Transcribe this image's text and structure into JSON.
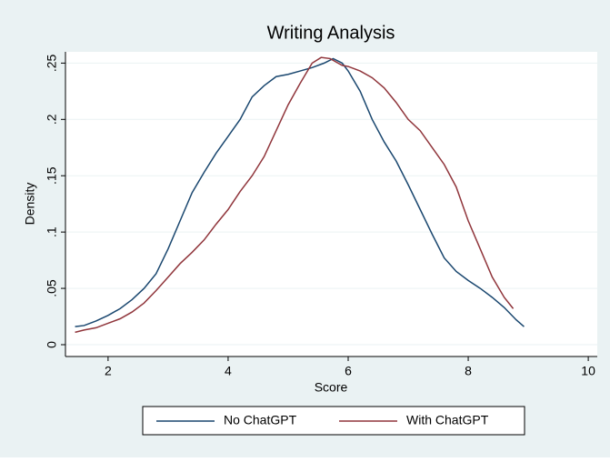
{
  "chart_data": {
    "type": "line",
    "title": "Writing Analysis",
    "xlabel": "Score",
    "ylabel": "Density",
    "xlim": [
      1.29,
      10.15
    ],
    "xticks": [
      2,
      4,
      6,
      8,
      10
    ],
    "ylim": [
      -0.0105,
      0.26
    ],
    "yticks": [
      0,
      {
        "value": 0.05,
        "label": ".05"
      },
      {
        "value": 0.1,
        "label": ".1"
      },
      {
        "value": 0.15,
        "label": ".15"
      },
      {
        "value": 0.2,
        "label": ".2"
      },
      {
        "value": 0.25,
        "label": ".25"
      }
    ],
    "grid": true,
    "legend": "bottom",
    "series": [
      {
        "name": "No ChatGPT",
        "color": "#1a476f",
        "x": [
          1.45,
          1.6,
          1.8,
          2.0,
          2.2,
          2.4,
          2.6,
          2.8,
          3.0,
          3.2,
          3.4,
          3.6,
          3.8,
          4.0,
          4.2,
          4.4,
          4.6,
          4.8,
          5.0,
          5.2,
          5.4,
          5.6,
          5.75,
          5.9,
          6.0,
          6.2,
          6.4,
          6.6,
          6.8,
          7.0,
          7.2,
          7.4,
          7.6,
          7.8,
          8.0,
          8.2,
          8.4,
          8.6,
          8.8,
          8.93
        ],
        "values": [
          0.016,
          0.017,
          0.021,
          0.026,
          0.032,
          0.04,
          0.05,
          0.063,
          0.085,
          0.11,
          0.135,
          0.153,
          0.17,
          0.185,
          0.2,
          0.22,
          0.23,
          0.238,
          0.24,
          0.243,
          0.246,
          0.25,
          0.254,
          0.25,
          0.243,
          0.225,
          0.2,
          0.18,
          0.163,
          0.142,
          0.12,
          0.098,
          0.077,
          0.065,
          0.057,
          0.05,
          0.042,
          0.033,
          0.022,
          0.016
        ]
      },
      {
        "name": "With ChatGPT",
        "color": "#90353b",
        "x": [
          1.45,
          1.6,
          1.8,
          2.0,
          2.2,
          2.4,
          2.6,
          2.8,
          3.0,
          3.2,
          3.4,
          3.6,
          3.8,
          4.0,
          4.2,
          4.4,
          4.6,
          4.8,
          5.0,
          5.2,
          5.4,
          5.55,
          5.7,
          5.9,
          6.0,
          6.2,
          6.4,
          6.6,
          6.8,
          7.0,
          7.2,
          7.4,
          7.6,
          7.8,
          8.0,
          8.2,
          8.4,
          8.6,
          8.75
        ],
        "values": [
          0.011,
          0.013,
          0.015,
          0.019,
          0.023,
          0.029,
          0.037,
          0.048,
          0.06,
          0.072,
          0.082,
          0.093,
          0.107,
          0.12,
          0.136,
          0.15,
          0.167,
          0.19,
          0.213,
          0.232,
          0.25,
          0.255,
          0.254,
          0.248,
          0.247,
          0.243,
          0.237,
          0.228,
          0.215,
          0.2,
          0.19,
          0.175,
          0.16,
          0.14,
          0.11,
          0.085,
          0.06,
          0.042,
          0.032
        ]
      }
    ]
  }
}
